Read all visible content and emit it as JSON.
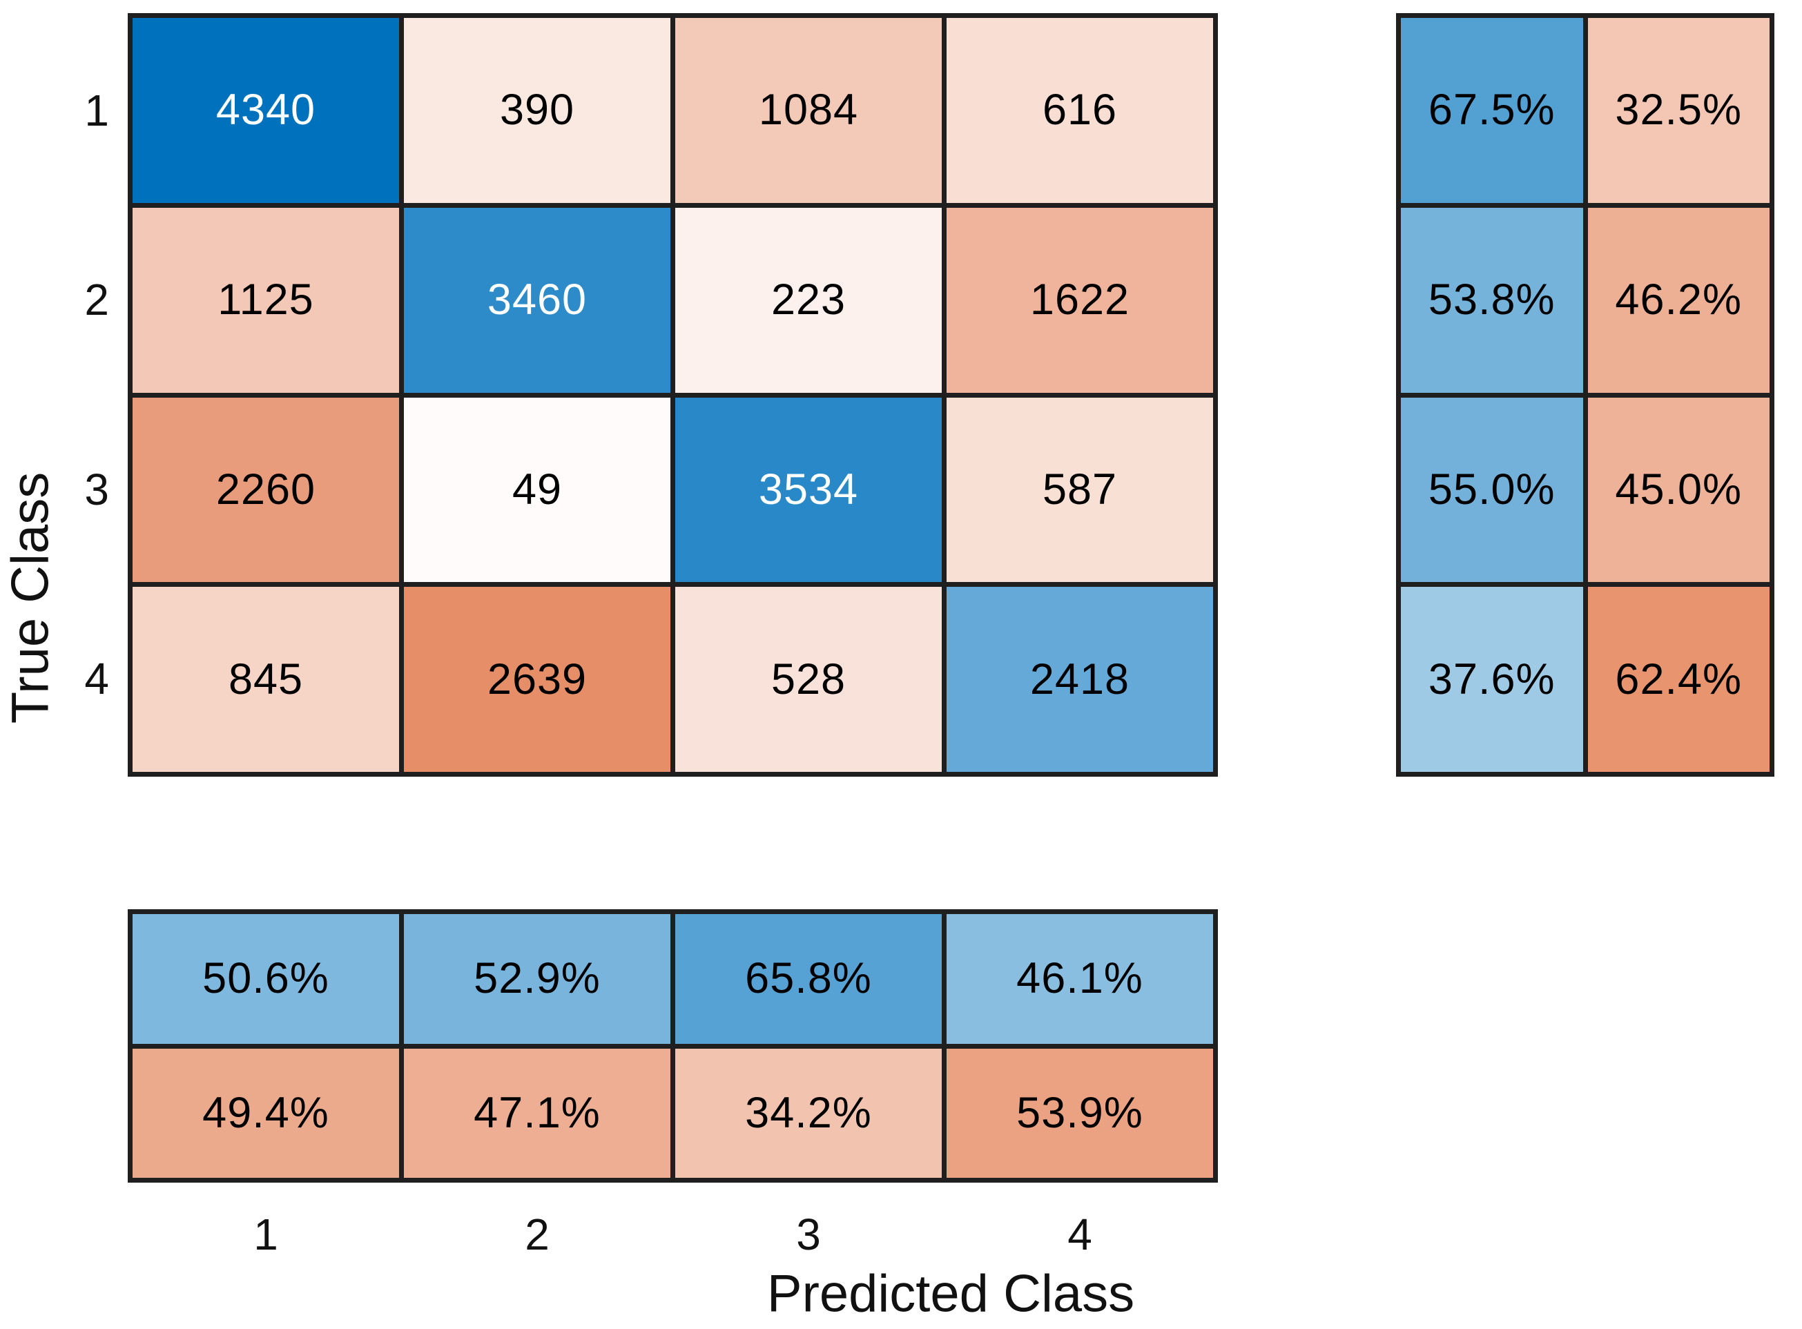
{
  "figure": {
    "background": "#ffffff",
    "grid_line_color": "#1f1f1f",
    "text_color": "#000000",
    "light_text_color": "#ffffff"
  },
  "colors": {
    "diagonal_base": "#0072BD",
    "off_diagonal_base": "#D95319"
  },
  "axes": {
    "x_label": "Predicted Class",
    "y_label": "True Class",
    "x_ticks": [
      "1",
      "2",
      "3",
      "4"
    ],
    "y_ticks": [
      "1",
      "2",
      "3",
      "4"
    ]
  },
  "chart_data": {
    "type": "heatmap",
    "title": "",
    "xlabel": "Predicted Class",
    "ylabel": "True Class",
    "classes": [
      "1",
      "2",
      "3",
      "4"
    ],
    "matrix_counts": [
      [
        4340,
        390,
        1084,
        616
      ],
      [
        1125,
        3460,
        223,
        1622
      ],
      [
        2260,
        49,
        3534,
        587
      ],
      [
        845,
        2639,
        528,
        2418
      ]
    ],
    "row_summary_percent": [
      [
        "67.5%",
        "32.5%"
      ],
      [
        "53.8%",
        "46.2%"
      ],
      [
        "55.0%",
        "45.0%"
      ],
      [
        "37.6%",
        "62.4%"
      ]
    ],
    "column_summary_percent": [
      [
        "50.6%",
        "52.9%",
        "65.8%",
        "46.1%"
      ],
      [
        "49.4%",
        "47.1%",
        "34.2%",
        "53.9%"
      ]
    ],
    "layout_hints": {
      "row_summary_position": "right",
      "column_summary_position": "bottom",
      "diagonal_color_meaning": "correct (blue)",
      "off_diagonal_color_meaning": "incorrect (orange)"
    }
  }
}
